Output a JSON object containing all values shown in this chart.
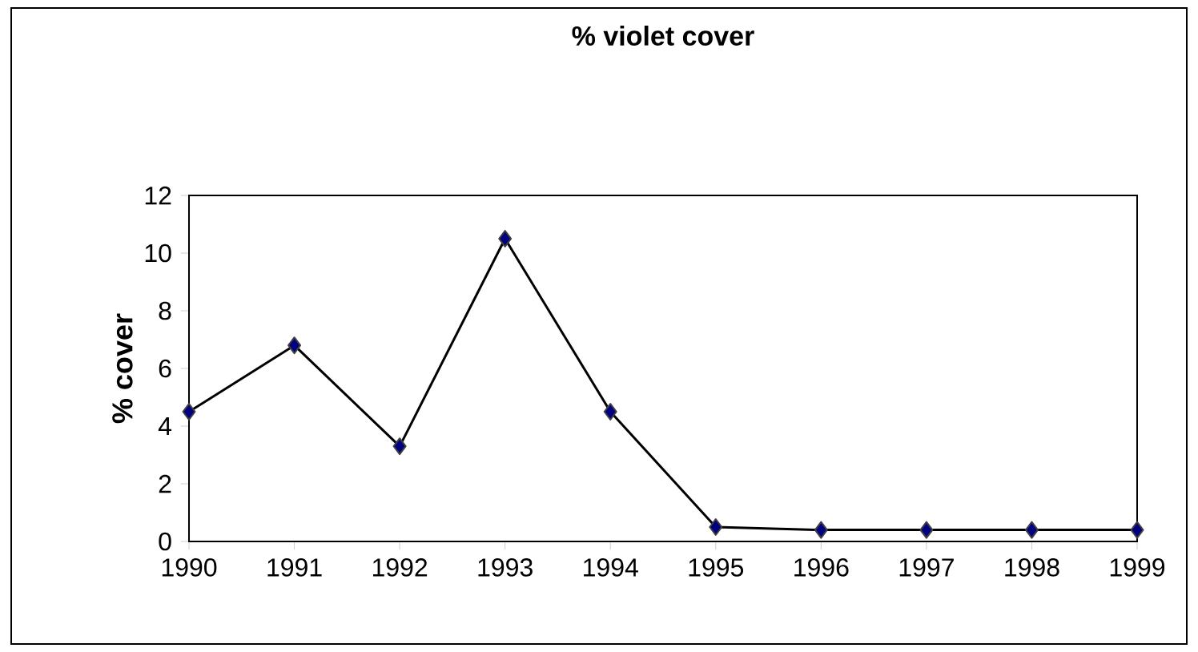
{
  "chart_data": {
    "type": "line",
    "title": "% violet cover",
    "ylabel": "% cover",
    "categories": [
      "1990",
      "1991",
      "1992",
      "1993",
      "1994",
      "1995",
      "1996",
      "1997",
      "1998",
      "1999"
    ],
    "series": [
      {
        "color": "#000080",
        "values": [
          4.5,
          6.8,
          3.3,
          10.5,
          4.5,
          0.5,
          0.4,
          0.4,
          0.4,
          0.4
        ]
      }
    ],
    "ylim": [
      0,
      12
    ],
    "yticks": [
      0,
      2,
      4,
      6,
      8,
      10,
      12
    ],
    "marker": "diamond",
    "line_style": "solid"
  }
}
